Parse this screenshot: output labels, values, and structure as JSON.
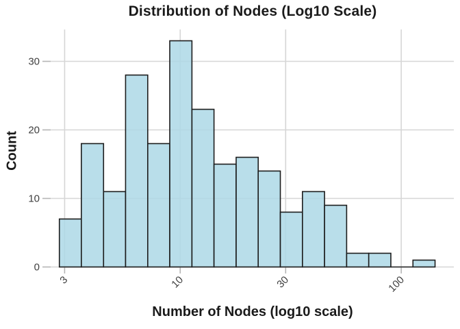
{
  "figure": {
    "background": "#ffffff"
  },
  "chart_data": {
    "type": "bar",
    "subtype": "histogram",
    "title": "Distribution of Nodes (Log10 Scale)",
    "xlabel": "Number of Nodes (log10 scale)",
    "ylabel": "Count",
    "x_scale": "log10",
    "x_ticks": [
      3,
      10,
      30,
      100
    ],
    "y_ticks": [
      0,
      10,
      20,
      30
    ],
    "ylim": [
      0,
      34.65
    ],
    "xlim_log10": [
      0.417,
      2.238
    ],
    "bin_width_log10": 0.1,
    "bin_edges": [
      2.84,
      3.57,
      4.5,
      5.66,
      7.13,
      8.97,
      11.3,
      14.22,
      17.91,
      22.54,
      28.38,
      35.73,
      44.98,
      56.62,
      71.29,
      89.74,
      112.98,
      142.23
    ],
    "counts": [
      7,
      18,
      11,
      28,
      18,
      33,
      23,
      15,
      16,
      14,
      8,
      11,
      9,
      2,
      2,
      0,
      1
    ],
    "grid": true,
    "legend_position": "none",
    "colors": {
      "bar_fill": "rgba(173,216,230,0.85)",
      "bar_stroke": "#1c1c1c",
      "grid": "#d6d6d6",
      "tick_mark": "#b5b5b5",
      "tick_label": "#404040",
      "text": "#1a1a1a"
    }
  }
}
